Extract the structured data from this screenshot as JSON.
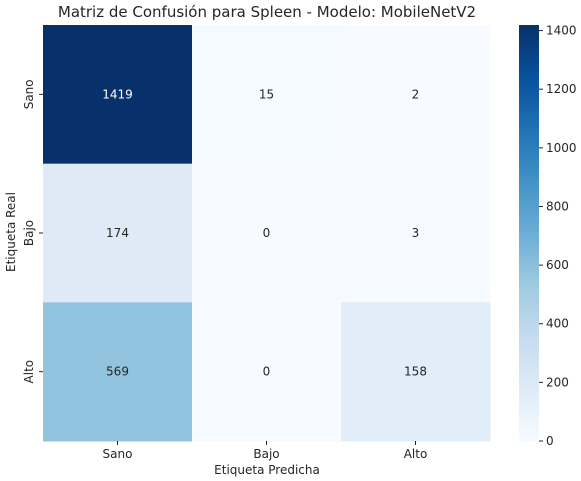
{
  "chart_data": {
    "type": "heatmap",
    "title": "Matriz de Confusión para Spleen - Modelo: MobileNetV2",
    "xlabel": "Etiqueta Predicha",
    "ylabel": "Etiqueta Real",
    "x_categories": [
      "Sano",
      "Bajo",
      "Alto"
    ],
    "y_categories": [
      "Sano",
      "Bajo",
      "Alto"
    ],
    "values": [
      [
        1419,
        15,
        2
      ],
      [
        174,
        0,
        3
      ],
      [
        569,
        0,
        158
      ]
    ],
    "colormap": "Blues",
    "color_range": [
      0,
      1419
    ],
    "colorbar_ticks": [
      0,
      200,
      400,
      600,
      800,
      1000,
      1200,
      1400
    ],
    "colors": {
      "low": "#f7fbff",
      "high": "#08306b"
    }
  }
}
